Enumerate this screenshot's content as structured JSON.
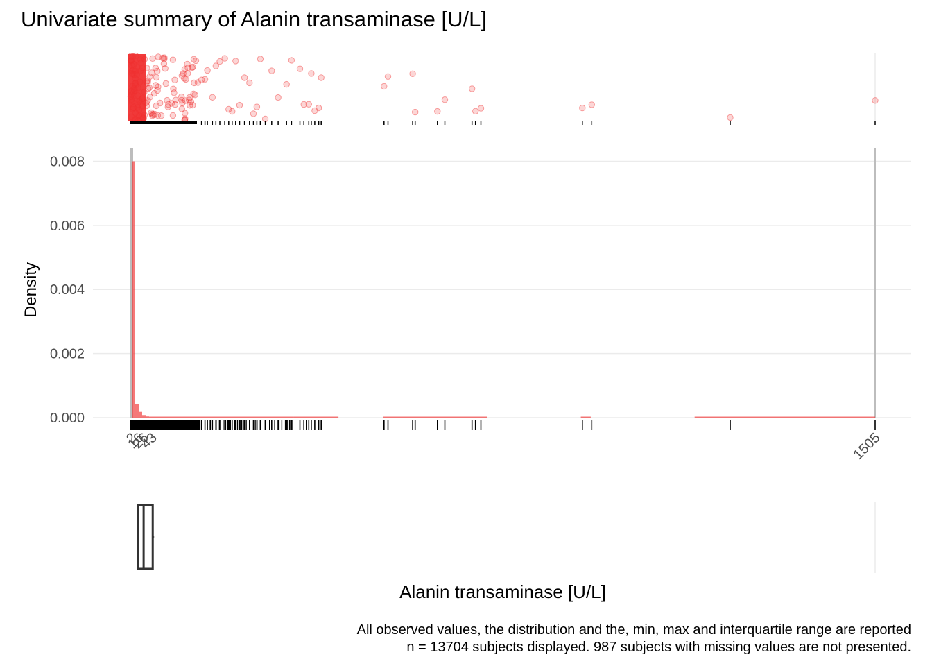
{
  "title": "Univariate summary of Alanin transaminase [U/L]",
  "caption": {
    "line1": "All observed values, the distribution and the, min, max and interquartile range are reported",
    "line2": "n = 13704 subjects displayed. 987 subjects with missing values are not presented."
  },
  "chart_data": {
    "type": "bar",
    "title": "Univariate summary of Alanin transaminase [U/L]",
    "xlabel": "Alanin transaminase [U/L]",
    "ylabel": "Density",
    "xlim": [
      2,
      1505
    ],
    "ylim": [
      0,
      0.0084
    ],
    "y_ticks": [
      0.0,
      0.002,
      0.004,
      0.006,
      0.008
    ],
    "y_tick_labels": [
      "0.000",
      "0.002",
      "0.004",
      "0.006",
      "0.008"
    ],
    "x_tick_labels": [
      "2",
      "16",
      "26",
      "43",
      "1505"
    ],
    "x_ticks": [
      2,
      16,
      26,
      43,
      1505
    ],
    "summary": {
      "min": 2,
      "q1": 16,
      "median": 26,
      "q3": 43,
      "max": 1505
    },
    "histogram": {
      "bins": [
        {
          "x0": 2,
          "x1": 9,
          "density": 0.008
        },
        {
          "x0": 9,
          "x1": 16,
          "density": 0.00043
        },
        {
          "x0": 16,
          "x1": 23,
          "density": 0.00018
        },
        {
          "x0": 23,
          "x1": 30,
          "density": 8e-05
        },
        {
          "x0": 30,
          "x1": 37,
          "density": 4e-05
        },
        {
          "x0": 37,
          "x1": 44,
          "density": 2e-05
        },
        {
          "x0": 44,
          "x1": 140,
          "density": 8e-06
        },
        {
          "x0": 140,
          "x1": 330,
          "density": 4e-06
        },
        {
          "x0": 330,
          "x1": 420,
          "density": 2e-06
        },
        {
          "x0": 510,
          "x1": 720,
          "density": 1e-06
        },
        {
          "x0": 910,
          "x1": 930,
          "density": 1e-06
        },
        {
          "x0": 1140,
          "x1": 1505,
          "density": 1e-06
        }
      ]
    },
    "sparse_observations": [
      143,
      150,
      155,
      165,
      172,
      180,
      190,
      198,
      205,
      212,
      220,
      230,
      240,
      248,
      255,
      262,
      272,
      285,
      298,
      315,
      325,
      342,
      350,
      360,
      365,
      372,
      380,
      385,
      512,
      520,
      570,
      575,
      620,
      635,
      690,
      697,
      708,
      913,
      932,
      1212,
      1505
    ],
    "dense_range": [
      2,
      140
    ],
    "grid": true,
    "legend": "none"
  }
}
